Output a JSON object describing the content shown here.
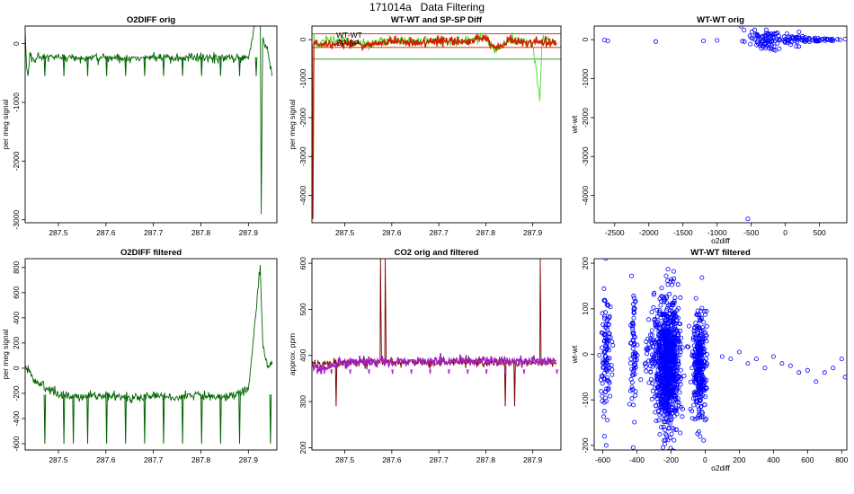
{
  "suptitle": "171014a   Data Filtering",
  "colors": {
    "green": "#006400",
    "lightgreen": "#44dd22",
    "red": "#cc2200",
    "darkred": "#800000",
    "band": "#228B22",
    "purple": "#a020c0",
    "blue": "#0000ff"
  },
  "chart_data": [
    {
      "id": "o2diff-orig",
      "type": "line",
      "title": "O2DIFF orig",
      "xlabel": "",
      "ylabel": "per meg signal",
      "xlim": [
        287.43,
        287.96
      ],
      "ylim": [
        -3050,
        300
      ],
      "xticks": [
        287.5,
        287.6,
        287.7,
        287.8,
        287.9
      ],
      "yticks": [
        0,
        -1000,
        -2000,
        -3000
      ],
      "series": [
        {
          "color": "green",
          "baseline": -230,
          "points": [
            [
              287.43,
              200
            ],
            [
              287.433,
              -400
            ],
            [
              287.436,
              -550
            ],
            [
              287.44,
              -200
            ],
            [
              287.45,
              -300
            ],
            [
              287.47,
              -220
            ],
            [
              287.5,
              -250
            ],
            [
              287.52,
              -230
            ],
            [
              287.55,
              -260
            ],
            [
              287.6,
              -240
            ],
            [
              287.65,
              -250
            ],
            [
              287.7,
              -230
            ],
            [
              287.75,
              -260
            ],
            [
              287.8,
              -240
            ],
            [
              287.85,
              -250
            ],
            [
              287.9,
              -230
            ],
            [
              287.925,
              800
            ],
            [
              287.927,
              -2900
            ],
            [
              287.93,
              100
            ],
            [
              287.94,
              -100
            ],
            [
              287.95,
              -550
            ]
          ],
          "dips": [
            287.47,
            287.51,
            287.56,
            287.6,
            287.64,
            287.68,
            287.72,
            287.76,
            287.8,
            287.84,
            287.88,
            287.915
          ],
          "dip_depth": -550
        }
      ]
    },
    {
      "id": "wt-sp-diff",
      "type": "line",
      "title": "WT-WT and SP-SP Diff",
      "xlabel": "",
      "ylabel": "per meg signal",
      "xlim": [
        287.43,
        287.96
      ],
      "ylim": [
        -4700,
        350
      ],
      "xticks": [
        287.5,
        287.6,
        287.7,
        287.8,
        287.9
      ],
      "yticks": [
        0,
        -1000,
        -2000,
        -3000,
        -4000
      ],
      "legend": [
        "WT-WT",
        "SP-SP"
      ],
      "legend_position": "top-left",
      "hlines_red": [
        -200,
        150
      ],
      "hlines_green": [
        -500,
        400
      ],
      "series": [
        {
          "name": "WT-WT",
          "color": "lightgreen",
          "points": [
            [
              287.43,
              -100
            ],
            [
              287.432,
              -4600
            ],
            [
              287.434,
              100
            ],
            [
              287.44,
              -200
            ],
            [
              287.46,
              0
            ],
            [
              287.5,
              -50
            ],
            [
              287.55,
              -100
            ],
            [
              287.6,
              0
            ],
            [
              287.65,
              -80
            ],
            [
              287.7,
              20
            ],
            [
              287.75,
              -50
            ],
            [
              287.8,
              60
            ],
            [
              287.82,
              -300
            ],
            [
              287.85,
              0
            ],
            [
              287.9,
              -80
            ],
            [
              287.915,
              -1600
            ],
            [
              287.92,
              0
            ],
            [
              287.95,
              -100
            ]
          ]
        },
        {
          "name": "SP-SP",
          "color": "red",
          "points": [
            [
              287.43,
              -100
            ],
            [
              287.432,
              -4600
            ],
            [
              287.434,
              0
            ],
            [
              287.45,
              -150
            ],
            [
              287.5,
              -80
            ],
            [
              287.55,
              -120
            ],
            [
              287.6,
              -40
            ],
            [
              287.65,
              -90
            ],
            [
              287.7,
              -20
            ],
            [
              287.75,
              -70
            ],
            [
              287.8,
              40
            ],
            [
              287.82,
              -250
            ],
            [
              287.85,
              -20
            ],
            [
              287.9,
              -60
            ],
            [
              287.95,
              -80
            ]
          ]
        }
      ]
    },
    {
      "id": "wt-wt-orig",
      "type": "scatter",
      "title": "WT-WT orig",
      "xlabel": "o2diff",
      "ylabel": "wt-wt",
      "xlim": [
        -2800,
        900
      ],
      "ylim": [
        -4700,
        350
      ],
      "xticks": [
        -2500,
        -2000,
        -1500,
        -1000,
        -500,
        0,
        500
      ],
      "yticks": [
        0,
        -1000,
        -2000,
        -3000,
        -4000
      ],
      "color": "blue",
      "points": [
        [
          -2650,
          -10
        ],
        [
          -2600,
          -30
        ],
        [
          -1900,
          -50
        ],
        [
          -1200,
          -30
        ],
        [
          -1000,
          -20
        ],
        [
          -550,
          -4600
        ],
        [
          -450,
          250
        ],
        [
          -600,
          -50
        ],
        [
          -500,
          50
        ],
        [
          -400,
          -100
        ],
        [
          -300,
          100
        ],
        [
          -200,
          -150
        ],
        [
          -100,
          0
        ],
        [
          0,
          -50
        ],
        [
          100,
          80
        ],
        [
          200,
          200
        ],
        [
          300,
          -20
        ],
        [
          400,
          0
        ],
        [
          500,
          -30
        ],
        [
          600,
          10
        ],
        [
          700,
          -20
        ],
        [
          800,
          0
        ]
      ],
      "clusters": [
        {
          "cx": -250,
          "cy": 0,
          "sx": 180,
          "sy": 120,
          "n": 90
        },
        {
          "cx": 150,
          "cy": -20,
          "sx": 80,
          "sy": 60,
          "n": 25
        },
        {
          "cx": 550,
          "cy": -10,
          "sx": 150,
          "sy": 30,
          "n": 30
        }
      ]
    },
    {
      "id": "o2diff-filtered",
      "type": "line",
      "title": "O2DIFF filtered",
      "xlabel": "",
      "ylabel": "per meg signal",
      "xlim": [
        287.43,
        287.96
      ],
      "ylim": [
        -650,
        870
      ],
      "xticks": [
        287.5,
        287.6,
        287.7,
        287.8,
        287.9
      ],
      "yticks": [
        800,
        600,
        400,
        200,
        0,
        -200,
        -400,
        -600
      ],
      "series": [
        {
          "color": "green",
          "baseline": -210,
          "points": [
            [
              287.43,
              30
            ],
            [
              287.44,
              -40
            ],
            [
              287.45,
              -100
            ],
            [
              287.47,
              -150
            ],
            [
              287.5,
              -200
            ],
            [
              287.55,
              -230
            ],
            [
              287.6,
              -210
            ],
            [
              287.65,
              -240
            ],
            [
              287.7,
              -220
            ],
            [
              287.75,
              -230
            ],
            [
              287.8,
              -210
            ],
            [
              287.85,
              -230
            ],
            [
              287.9,
              -180
            ],
            [
              287.925,
              820
            ],
            [
              287.93,
              200
            ],
            [
              287.94,
              0
            ],
            [
              287.95,
              30
            ]
          ],
          "dips": [
            287.47,
            287.51,
            287.53,
            287.56,
            287.6,
            287.64,
            287.68,
            287.72,
            287.76,
            287.8,
            287.84,
            287.88,
            287.945
          ],
          "dip_depth": -600
        }
      ]
    },
    {
      "id": "co2-orig-filtered",
      "type": "line",
      "title": "CO2 orig and filtered",
      "xlabel": "",
      "ylabel": "approx. ppm",
      "xlim": [
        287.43,
        287.96
      ],
      "ylim": [
        195,
        610
      ],
      "xticks": [
        287.5,
        287.6,
        287.7,
        287.8,
        287.9
      ],
      "yticks": [
        200,
        300,
        400,
        500,
        600
      ],
      "series": [
        {
          "color": "darkred",
          "points": [
            [
              287.43,
              380
            ],
            [
              287.5,
              385
            ],
            [
              287.575,
              385
            ],
            [
              287.576,
              610
            ],
            [
              287.578,
              385
            ],
            [
              287.585,
              385
            ],
            [
              287.586,
              610
            ],
            [
              287.588,
              385
            ],
            [
              287.915,
              385
            ],
            [
              287.916,
              610
            ],
            [
              287.918,
              385
            ],
            [
              287.95,
              385
            ]
          ],
          "dips": [
            287.48,
            287.84,
            287.86
          ],
          "dip_depth": 290
        },
        {
          "color": "purple",
          "points": [
            [
              287.43,
              375
            ],
            [
              287.45,
              370
            ],
            [
              287.5,
              385
            ],
            [
              287.6,
              388
            ],
            [
              287.7,
              388
            ],
            [
              287.8,
              388
            ],
            [
              287.9,
              388
            ],
            [
              287.95,
              388
            ]
          ],
          "dips": [
            287.44,
            287.455,
            287.47,
            287.51,
            287.55,
            287.6,
            287.64,
            287.68,
            287.72,
            287.76,
            287.8,
            287.84,
            287.88,
            287.95
          ],
          "dip_depth": 360
        }
      ]
    },
    {
      "id": "wt-wt-filtered",
      "type": "scatter",
      "title": "WT-WT filtered",
      "xlabel": "o2diff",
      "ylabel": "wt-wt",
      "xlim": [
        -650,
        830
      ],
      "ylim": [
        -210,
        210
      ],
      "xticks": [
        -600,
        -400,
        -200,
        0,
        200,
        400,
        600,
        800
      ],
      "yticks": [
        200,
        100,
        0,
        -100,
        -200
      ],
      "color": "blue",
      "points": [
        [
          100,
          -5
        ],
        [
          150,
          -10
        ],
        [
          200,
          5
        ],
        [
          250,
          -20
        ],
        [
          300,
          -10
        ],
        [
          350,
          -30
        ],
        [
          400,
          -5
        ],
        [
          450,
          -20
        ],
        [
          500,
          -25
        ],
        [
          550,
          -40
        ],
        [
          600,
          -35
        ],
        [
          650,
          -60
        ],
        [
          700,
          -40
        ],
        [
          750,
          -30
        ],
        [
          800,
          -10
        ],
        [
          820,
          -50
        ],
        [
          -590,
          -180
        ],
        [
          -580,
          -200
        ],
        [
          -420,
          20
        ]
      ],
      "clusters": [
        {
          "cx": -580,
          "cy": 0,
          "sx": 15,
          "sy": 60,
          "n": 110
        },
        {
          "cx": -420,
          "cy": 10,
          "sx": 10,
          "sy": 70,
          "n": 70
        },
        {
          "cx": -320,
          "cy": 10,
          "sx": 25,
          "sy": 40,
          "n": 50
        },
        {
          "cx": -220,
          "cy": -20,
          "sx": 35,
          "sy": 70,
          "n": 900
        },
        {
          "cx": -30,
          "cy": -20,
          "sx": 20,
          "sy": 60,
          "n": 320
        }
      ]
    }
  ]
}
